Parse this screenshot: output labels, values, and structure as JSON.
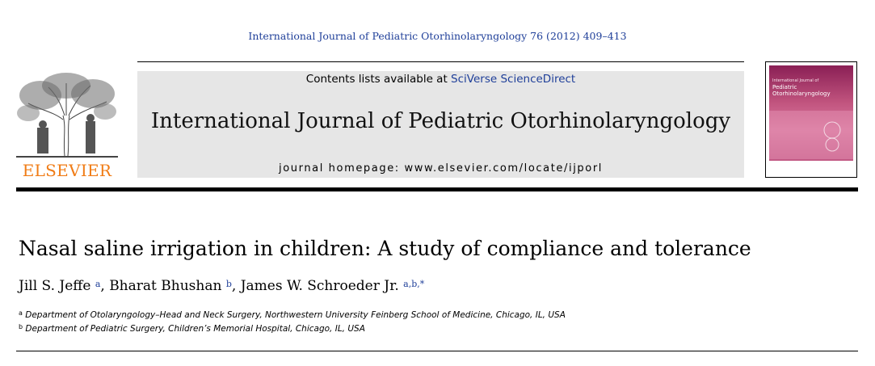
{
  "header": {
    "journal_reference": "International Journal of Pediatric Otorhinolaryngology 76 (2012) 409–413"
  },
  "publisher": {
    "logo_text": "ELSEVIER",
    "logo_color": "#f07c16"
  },
  "banner": {
    "contents_prefix": "Contents lists available at",
    "contents_link": "SciVerse ScienceDirect",
    "journal_title": "International Journal of Pediatric Otorhinolaryngology",
    "homepage": "journal homepage: www.elsevier.com/locate/ijporl",
    "background_color": "#e6e6e6",
    "link_color": "#1f3f99"
  },
  "cover": {
    "line1": "International Journal of",
    "line2": "Pediatric Otorhinolaryngology"
  },
  "article": {
    "title": "Nasal saline irrigation in children: A study of compliance and tolerance",
    "authors": [
      {
        "name": "Jill S. Jeffe",
        "sup": "a"
      },
      {
        "name": "Bharat Bhushan",
        "sup": "b"
      },
      {
        "name": "James W. Schroeder Jr.",
        "sup": "a,b,*"
      }
    ],
    "affiliations": [
      {
        "mark": "a",
        "text": "Department of Otolaryngology–Head and Neck Surgery, Northwestern University Feinberg School of Medicine, Chicago, IL, USA"
      },
      {
        "mark": "b",
        "text": "Department of Pediatric Surgery, Children’s Memorial Hospital, Chicago, IL, USA"
      }
    ]
  }
}
